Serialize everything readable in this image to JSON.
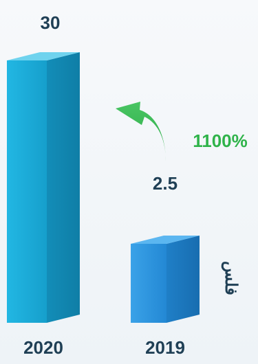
{
  "chart_data": {
    "type": "bar",
    "categories": [
      "2020",
      "2019"
    ],
    "values": [
      30,
      2.5
    ],
    "value_labels": [
      "30",
      "2.5"
    ],
    "unit": "فلس",
    "change_label": "1100%",
    "colors": {
      "bar_2020_front": "#1ba9d4",
      "bar_2020_side": "#1796c0",
      "bar_2020_top": "#6fd3ee",
      "bar_2019_front": "#2a93de",
      "bar_2019_side": "#1f7fc7",
      "bar_2019_top": "#5bb6f0",
      "text_dark": "#1f3f55",
      "accent_green": "#2fb34a"
    }
  }
}
